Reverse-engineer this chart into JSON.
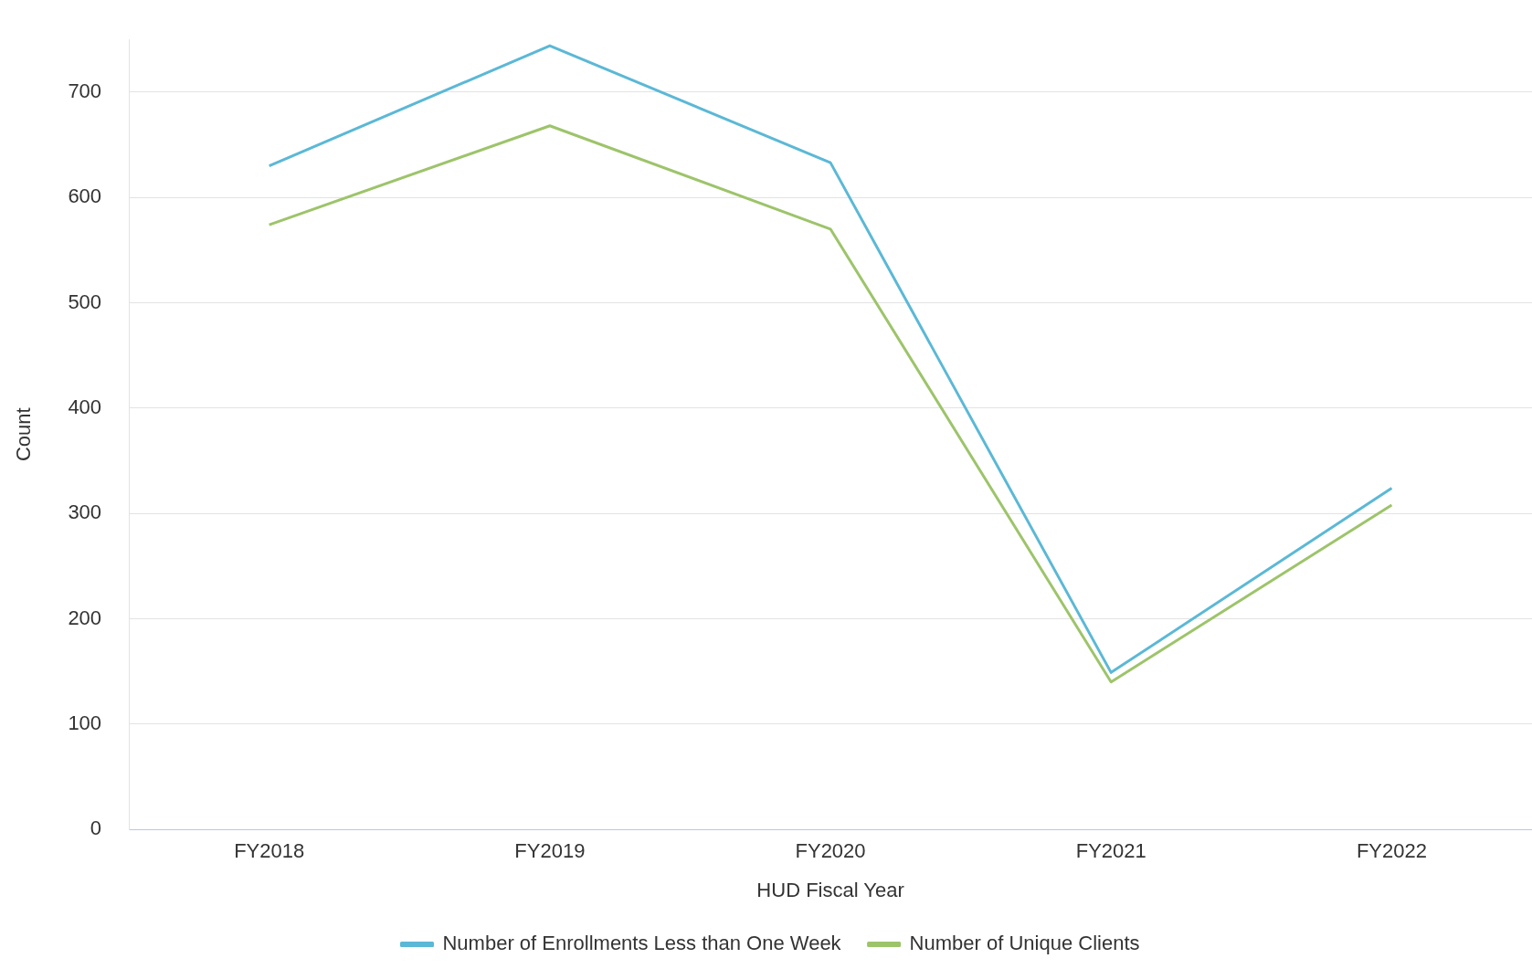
{
  "chart_data": {
    "type": "line",
    "xlabel": "HUD Fiscal Year",
    "ylabel": "Count",
    "categories": [
      "FY2018",
      "FY2019",
      "FY2020",
      "FY2021",
      "FY2022"
    ],
    "series": [
      {
        "name": "Number of Enrollments Less than One Week",
        "color": "#5bb8d6",
        "values": [
          630,
          744,
          633,
          149,
          324
        ]
      },
      {
        "name": "Number of Unique Clients",
        "color": "#9dc46a",
        "values": [
          574,
          668,
          570,
          140,
          308
        ]
      }
    ],
    "ylim": [
      0,
      750
    ],
    "yticks": [
      0,
      100,
      200,
      300,
      400,
      500,
      600,
      700
    ],
    "grid": "y",
    "legend": "bottom",
    "marker": "none",
    "line_style": "solid"
  }
}
